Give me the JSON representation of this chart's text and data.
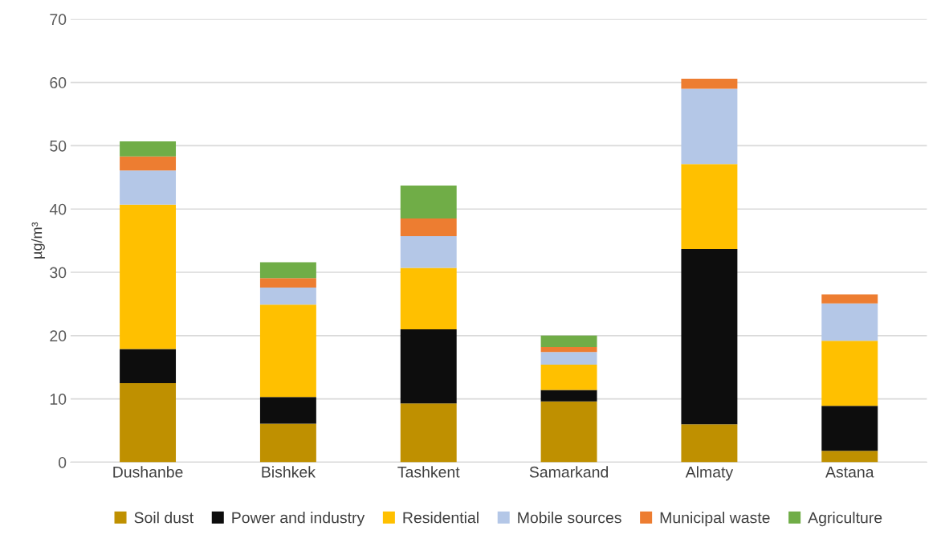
{
  "chart_data": {
    "type": "bar",
    "stacked": true,
    "ylabel": "µg/m³",
    "categories": [
      "Dushanbe",
      "Bishkek",
      "Tashkent",
      "Samarkand",
      "Almaty",
      "Astana"
    ],
    "series": [
      {
        "name": "Soil dust",
        "color": "#bf9000",
        "values": [
          12.5,
          6.1,
          9.3,
          9.6,
          6.0,
          1.8
        ]
      },
      {
        "name": "Power and industry",
        "color": "#0d0d0d",
        "values": [
          5.4,
          4.2,
          11.7,
          1.8,
          27.7,
          7.1
        ]
      },
      {
        "name": "Residential",
        "color": "#ffc000",
        "values": [
          22.8,
          14.6,
          9.7,
          4.0,
          13.4,
          10.3
        ]
      },
      {
        "name": "Mobile sources",
        "color": "#b4c7e7",
        "values": [
          5.4,
          2.7,
          5.0,
          2.0,
          11.9,
          5.9
        ]
      },
      {
        "name": "Municipal waste",
        "color": "#ed7d31",
        "values": [
          2.2,
          1.5,
          2.8,
          0.8,
          1.6,
          1.4
        ]
      },
      {
        "name": "Agriculture",
        "color": "#70ad47",
        "values": [
          2.4,
          2.5,
          5.2,
          1.8,
          0,
          0
        ]
      }
    ],
    "ylim": [
      0,
      70
    ],
    "yticks": [
      0,
      10,
      20,
      30,
      40,
      50,
      60,
      70
    ],
    "grid": "y",
    "legend": "bottom"
  }
}
